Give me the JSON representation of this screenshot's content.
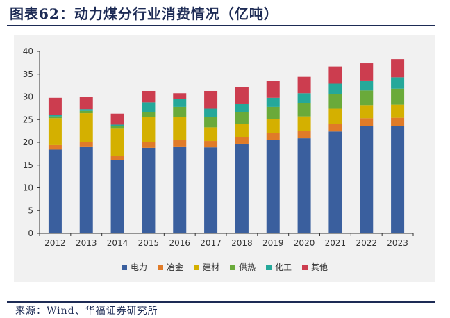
{
  "figure_title": "图表62：动力煤分行业消费情况（亿吨）",
  "source_note": "来源：Wind、华福证券研究所",
  "chart_data": {
    "type": "bar",
    "stacked": true,
    "title": "",
    "xlabel": "",
    "ylabel": "",
    "ylim": [
      0,
      40
    ],
    "yticks": [
      0,
      5,
      10,
      15,
      20,
      25,
      30,
      35,
      40
    ],
    "grid": false,
    "legend_position": "bottom",
    "categories": [
      "2012",
      "2013",
      "2014",
      "2015",
      "2016",
      "2017",
      "2018",
      "2019",
      "2020",
      "2021",
      "2022",
      "2023"
    ],
    "series": [
      {
        "name": "电力",
        "color": "#3a5f9e",
        "values": [
          18.4,
          19.1,
          16.1,
          18.8,
          19.1,
          18.9,
          19.7,
          20.5,
          20.9,
          22.4,
          23.6,
          23.6
        ]
      },
      {
        "name": "冶金",
        "color": "#e07b28",
        "values": [
          1.0,
          1.0,
          1.0,
          1.3,
          1.4,
          1.4,
          1.5,
          1.5,
          1.6,
          1.7,
          1.7,
          1.8
        ]
      },
      {
        "name": "建材",
        "color": "#d4b000",
        "values": [
          5.9,
          6.3,
          5.9,
          5.5,
          5.0,
          3.0,
          2.8,
          3.1,
          3.2,
          3.3,
          2.9,
          2.9
        ]
      },
      {
        "name": "供热",
        "color": "#6aaa3a",
        "values": [
          0.4,
          0.5,
          0.6,
          1.1,
          2.3,
          2.3,
          2.6,
          2.7,
          3.0,
          3.2,
          3.2,
          3.5
        ]
      },
      {
        "name": "化工",
        "color": "#25a89a",
        "values": [
          0.3,
          0.4,
          0.3,
          2.1,
          1.8,
          1.8,
          1.8,
          2.0,
          2.1,
          2.3,
          2.2,
          2.5
        ]
      },
      {
        "name": "其他",
        "color": "#cc3d4f",
        "values": [
          3.8,
          2.7,
          2.4,
          2.5,
          1.2,
          3.9,
          3.8,
          3.7,
          3.6,
          3.8,
          3.8,
          4.0
        ]
      }
    ]
  }
}
